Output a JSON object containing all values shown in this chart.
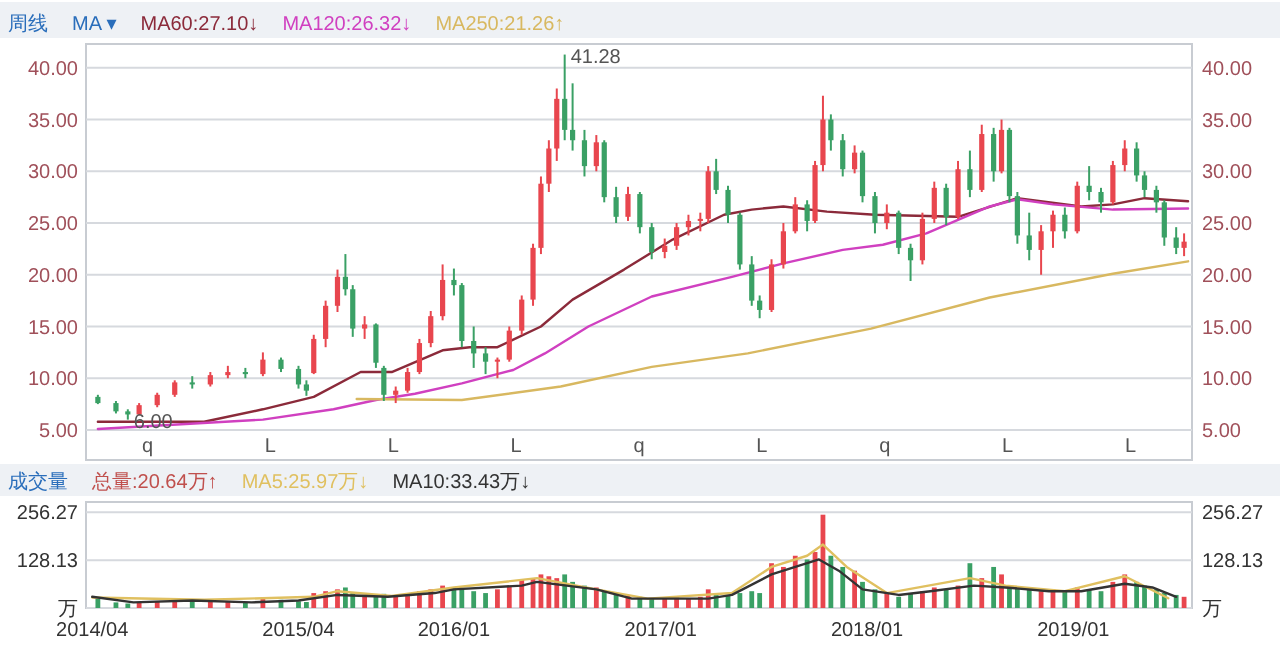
{
  "chart_data": [
    {
      "type": "candlestick",
      "title": "周线",
      "annotations": [
        "MA ▾",
        {
          "text": "41.28",
          "x": "2016-07-15",
          "y": 41.28
        },
        {
          "text": "6.00",
          "x": "2014-06-03",
          "y": 6.0
        },
        "q",
        "L",
        "L",
        "L",
        "q",
        "L",
        "q",
        "L",
        "L"
      ],
      "xlim": [
        "2014-03-21",
        "2019-07-30"
      ],
      "ylim": [
        2.1,
        42.3
      ],
      "yticks": [
        {
          "value": 5,
          "label": "5.00"
        },
        {
          "value": 10,
          "label": "10.00"
        },
        {
          "value": 15,
          "label": "15.00"
        },
        {
          "value": 20,
          "label": "20.00"
        },
        {
          "value": 25,
          "label": "25.00"
        },
        {
          "value": 30,
          "label": "30.00"
        },
        {
          "value": 35,
          "label": "35.00"
        },
        {
          "value": 40,
          "label": "40.00"
        }
      ],
      "y2lim": [
        2.1,
        42.3
      ],
      "y2ticks": [
        {
          "value": 5,
          "label": "5.00"
        },
        {
          "value": 10,
          "label": "10.00"
        },
        {
          "value": 15,
          "label": "15.00"
        },
        {
          "value": 20,
          "label": "20.00"
        },
        {
          "value": 25,
          "label": "25.00"
        },
        {
          "value": 30,
          "label": "30.00"
        },
        {
          "value": 35,
          "label": "35.00"
        },
        {
          "value": 40,
          "label": "40.00"
        }
      ],
      "tick_labels": "y",
      "grid": "y",
      "series": [
        {
          "x": [
            "2014-04-11",
            "2014-05-13",
            "2014-06-03",
            "2014-06-23",
            "2014-07-25",
            "2014-08-25",
            "2014-09-25",
            "2014-10-27",
            "2014-11-27",
            "2014-12-28",
            "2015-01-28",
            "2015-03-01",
            "2015-04-01",
            "2015-04-15",
            "2015-04-28",
            "2015-05-19",
            "2015-06-09",
            "2015-06-23",
            "2015-07-06",
            "2015-07-27",
            "2015-08-16",
            "2015-08-30",
            "2015-09-20",
            "2015-10-11",
            "2015-11-01",
            "2015-11-21",
            "2015-12-12",
            "2016-01-01",
            "2016-01-15",
            "2016-02-05",
            "2016-02-26",
            "2016-03-18",
            "2016-04-08",
            "2016-04-30",
            "2016-05-20",
            "2016-06-03",
            "2016-06-17",
            "2016-07-01",
            "2016-07-15",
            "2016-07-29",
            "2016-08-19",
            "2016-09-09",
            "2016-09-23",
            "2016-10-14",
            "2016-11-04",
            "2016-11-25",
            "2016-12-16",
            "2017-01-08",
            "2017-01-29",
            "2017-02-19",
            "2017-03-12",
            "2017-03-26",
            "2017-04-09",
            "2017-04-30",
            "2017-05-21",
            "2017-06-11",
            "2017-06-25",
            "2017-07-16",
            "2017-08-06",
            "2017-08-27",
            "2017-09-17",
            "2017-10-01",
            "2017-10-15",
            "2017-10-29",
            "2017-11-19",
            "2017-12-10",
            "2017-12-24",
            "2018-01-15",
            "2018-02-05",
            "2018-02-26",
            "2018-03-19",
            "2018-04-09",
            "2018-04-30",
            "2018-05-21",
            "2018-06-11",
            "2018-07-02",
            "2018-07-23",
            "2018-08-13",
            "2018-08-27",
            "2018-09-10",
            "2018-09-24",
            "2018-10-15",
            "2018-11-05",
            "2018-11-26",
            "2018-12-17",
            "2019-01-08",
            "2019-01-29",
            "2019-02-19",
            "2019-03-12",
            "2019-04-02",
            "2019-04-23",
            "2019-05-07",
            "2019-05-28",
            "2019-06-11",
            "2019-07-02",
            "2019-07-16"
          ],
          "ohlc": [
            [
              8.2,
              8.4,
              7.5,
              7.6
            ],
            [
              7.6,
              7.8,
              6.6,
              6.8
            ],
            [
              6.8,
              7.0,
              6.0,
              6.5
            ],
            [
              6.5,
              7.6,
              6.4,
              7.4
            ],
            [
              7.4,
              8.6,
              7.2,
              8.4
            ],
            [
              8.4,
              9.8,
              8.2,
              9.6
            ],
            [
              9.6,
              10.2,
              9.0,
              9.4
            ],
            [
              9.4,
              10.6,
              9.2,
              10.3
            ],
            [
              10.3,
              11.2,
              10.0,
              10.6
            ],
            [
              10.6,
              11.0,
              10.0,
              10.4
            ],
            [
              10.4,
              12.5,
              10.2,
              11.8
            ],
            [
              11.8,
              12.0,
              10.6,
              10.9
            ],
            [
              10.9,
              11.2,
              9.0,
              9.4
            ],
            [
              9.4,
              9.8,
              8.3,
              8.8
            ],
            [
              10.5,
              14.2,
              10.4,
              13.8
            ],
            [
              13.8,
              17.5,
              13.0,
              17.0
            ],
            [
              17.0,
              20.5,
              16.4,
              19.8
            ],
            [
              19.8,
              22.0,
              18.0,
              18.6
            ],
            [
              18.6,
              19.0,
              14.0,
              14.8
            ],
            [
              14.8,
              16.0,
              13.8,
              15.2
            ],
            [
              15.2,
              15.3,
              11.0,
              11.5
            ],
            [
              11.0,
              11.2,
              7.8,
              8.4
            ],
            [
              8.4,
              9.2,
              7.6,
              8.8
            ],
            [
              8.8,
              11.0,
              8.6,
              10.6
            ],
            [
              10.6,
              13.8,
              10.4,
              13.4
            ],
            [
              13.4,
              16.5,
              13.0,
              16.0
            ],
            [
              16.0,
              21.0,
              15.6,
              19.5
            ],
            [
              19.5,
              20.6,
              18.0,
              19.0
            ],
            [
              19.0,
              19.2,
              13.0,
              13.6
            ],
            [
              13.6,
              15.0,
              11.0,
              12.4
            ],
            [
              12.4,
              13.0,
              10.4,
              11.6
            ],
            [
              11.6,
              12.0,
              10.0,
              11.8
            ],
            [
              11.8,
              15.0,
              11.6,
              14.6
            ],
            [
              14.6,
              18.0,
              14.2,
              17.6
            ],
            [
              17.6,
              23.0,
              17.0,
              22.6
            ],
            [
              22.6,
              29.5,
              22.0,
              28.8
            ],
            [
              28.8,
              33.0,
              28.0,
              32.2
            ],
            [
              32.2,
              38.0,
              31.0,
              37.0
            ],
            [
              37.0,
              41.28,
              33.0,
              34.0
            ],
            [
              34.0,
              38.5,
              32.0,
              33.0
            ],
            [
              33.0,
              34.0,
              29.5,
              30.5
            ],
            [
              30.5,
              33.5,
              30.0,
              32.8
            ],
            [
              32.8,
              33.0,
              27.0,
              27.5
            ],
            [
              27.5,
              28.5,
              25.0,
              25.6
            ],
            [
              25.6,
              28.5,
              25.2,
              27.8
            ],
            [
              27.8,
              28.0,
              24.0,
              24.6
            ],
            [
              24.6,
              25.0,
              21.5,
              22.2
            ],
            [
              22.2,
              23.5,
              21.6,
              22.8
            ],
            [
              22.8,
              25.0,
              22.4,
              24.6
            ],
            [
              24.6,
              25.8,
              23.8,
              25.2
            ],
            [
              25.2,
              26.0,
              24.2,
              25.4
            ],
            [
              25.4,
              30.5,
              25.0,
              30.0
            ],
            [
              30.0,
              31.2,
              27.8,
              28.2
            ],
            [
              28.2,
              28.6,
              25.0,
              25.8
            ],
            [
              25.8,
              26.0,
              20.5,
              21.0
            ],
            [
              21.0,
              21.8,
              17.0,
              17.5
            ],
            [
              17.5,
              18.0,
              15.8,
              16.6
            ],
            [
              16.6,
              21.5,
              16.4,
              21.0
            ],
            [
              21.0,
              25.0,
              20.6,
              24.2
            ],
            [
              24.2,
              27.5,
              24.0,
              26.8
            ],
            [
              26.8,
              27.2,
              24.2,
              25.2
            ],
            [
              25.2,
              31.0,
              25.0,
              30.6
            ],
            [
              30.6,
              37.3,
              30.0,
              35.0
            ],
            [
              35.0,
              35.5,
              32.0,
              33.0
            ],
            [
              33.0,
              33.6,
              29.5,
              30.2
            ],
            [
              30.2,
              32.5,
              29.8,
              31.8
            ],
            [
              31.8,
              32.0,
              27.0,
              27.6
            ],
            [
              27.6,
              28.0,
              24.0,
              25.0
            ],
            [
              25.0,
              26.8,
              24.4,
              26.0
            ],
            [
              26.0,
              26.2,
              22.0,
              22.6
            ],
            [
              22.6,
              23.0,
              19.4,
              21.4
            ],
            [
              21.4,
              26.0,
              21.0,
              25.4
            ],
            [
              25.4,
              29.0,
              25.0,
              28.4
            ],
            [
              28.4,
              28.8,
              24.8,
              25.6
            ],
            [
              25.6,
              31.0,
              25.4,
              30.2
            ],
            [
              30.2,
              32.0,
              27.5,
              28.2
            ],
            [
              28.2,
              34.5,
              28.0,
              33.6
            ],
            [
              33.6,
              34.2,
              29.0,
              30.0
            ],
            [
              30.0,
              35.0,
              29.8,
              34.0
            ],
            [
              34.0,
              34.2,
              27.0,
              27.6
            ],
            [
              27.6,
              28.0,
              23.0,
              23.8
            ],
            [
              23.8,
              26.0,
              21.4,
              22.4
            ],
            [
              22.4,
              24.8,
              20.0,
              24.2
            ],
            [
              24.2,
              26.2,
              22.6,
              25.8
            ],
            [
              25.8,
              26.5,
              23.5,
              24.2
            ],
            [
              24.2,
              29.0,
              24.0,
              28.6
            ],
            [
              28.6,
              30.5,
              27.2,
              28.0
            ],
            [
              28.0,
              28.4,
              26.0,
              27.0
            ],
            [
              27.0,
              31.0,
              26.8,
              30.6
            ],
            [
              30.6,
              33.0,
              30.0,
              32.2
            ],
            [
              32.2,
              32.8,
              29.0,
              29.6
            ],
            [
              29.6,
              30.0,
              27.5,
              28.2
            ],
            [
              28.2,
              28.6,
              26.0,
              27.0
            ],
            [
              27.0,
              27.2,
              22.8,
              23.6
            ],
            [
              23.6,
              24.6,
              22.0,
              22.6
            ],
            [
              22.6,
              24.0,
              21.8,
              23.2
            ]
          ],
          "colors": [
            "#3aa065",
            "#3aa065",
            "#3aa065",
            "#e8464e",
            "#e8464e",
            "#e8464e",
            "#3aa065",
            "#e8464e",
            "#e8464e",
            "#3aa065",
            "#e8464e",
            "#3aa065",
            "#3aa065",
            "#3aa065",
            "#e8464e",
            "#e8464e",
            "#e8464e",
            "#3aa065",
            "#3aa065",
            "#e8464e",
            "#3aa065",
            "#3aa065",
            "#e8464e",
            "#e8464e",
            "#e8464e",
            "#e8464e",
            "#e8464e",
            "#3aa065",
            "#3aa065",
            "#3aa065",
            "#3aa065",
            "#e8464e",
            "#e8464e",
            "#e8464e",
            "#e8464e",
            "#e8464e",
            "#e8464e",
            "#e8464e",
            "#3aa065",
            "#3aa065",
            "#3aa065",
            "#e8464e",
            "#3aa065",
            "#3aa065",
            "#e8464e",
            "#3aa065",
            "#3aa065",
            "#e8464e",
            "#e8464e",
            "#e8464e",
            "#e8464e",
            "#e8464e",
            "#3aa065",
            "#3aa065",
            "#3aa065",
            "#3aa065",
            "#3aa065",
            "#e8464e",
            "#e8464e",
            "#e8464e",
            "#3aa065",
            "#e8464e",
            "#e8464e",
            "#3aa065",
            "#3aa065",
            "#e8464e",
            "#3aa065",
            "#3aa065",
            "#e8464e",
            "#3aa065",
            "#3aa065",
            "#e8464e",
            "#e8464e",
            "#3aa065",
            "#e8464e",
            "#3aa065",
            "#e8464e",
            "#3aa065",
            "#e8464e",
            "#3aa065",
            "#3aa065",
            "#3aa065",
            "#e8464e",
            "#e8464e",
            "#3aa065",
            "#e8464e",
            "#3aa065",
            "#3aa065",
            "#e8464e",
            "#e8464e",
            "#3aa065",
            "#3aa065",
            "#3aa065",
            "#3aa065",
            "#3aa065",
            "#e8464e"
          ]
        },
        {
          "type": "line",
          "name": "MA60:27.10↓",
          "color": "#8b2a3a",
          "x": [
            "2014-04-11",
            "2014-10-16",
            "2015-01-28",
            "2015-04-28",
            "2015-07-20",
            "2015-09-13",
            "2015-12-12",
            "2016-01-29",
            "2016-03-18",
            "2016-06-03",
            "2016-07-29",
            "2016-10-28",
            "2017-01-22",
            "2017-04-23",
            "2017-06-11",
            "2017-08-06",
            "2017-10-22",
            "2018-01-15",
            "2018-06-11",
            "2018-09-24",
            "2019-01-15",
            "2019-03-12",
            "2019-05-07",
            "2019-07-23"
          ],
          "values": [
            5.8,
            5.8,
            7.0,
            8.2,
            10.6,
            10.6,
            12.7,
            13.0,
            13.0,
            15.0,
            17.6,
            20.5,
            23.4,
            25.8,
            26.3,
            26.6,
            26.1,
            25.8,
            25.6,
            27.4,
            26.6,
            26.8,
            27.4,
            27.1
          ]
        },
        {
          "type": "line",
          "name": "MA120:26.32↓",
          "color": "#d040c0",
          "x": [
            "2014-04-11",
            "2015-01-28",
            "2015-06-02",
            "2015-08-16",
            "2015-10-24",
            "2016-01-15",
            "2016-04-15",
            "2016-06-10",
            "2016-08-26",
            "2016-12-16",
            "2017-05-07",
            "2017-08-06",
            "2017-11-19",
            "2018-01-29",
            "2018-04-16",
            "2018-08-06",
            "2018-09-24",
            "2018-11-26",
            "2019-03-12",
            "2019-07-23"
          ],
          "values": [
            5.1,
            6.0,
            7.0,
            7.9,
            8.5,
            9.5,
            10.8,
            12.4,
            15.0,
            17.9,
            19.8,
            21.1,
            22.4,
            22.9,
            24.0,
            26.6,
            27.3,
            26.8,
            26.3,
            26.4
          ]
        },
        {
          "type": "line",
          "name": "MA250:21.26↑",
          "color": "#d8b860",
          "x": [
            "2015-07-13",
            "2016-01-15",
            "2016-07-08",
            "2016-12-16",
            "2017-06-04",
            "2018-01-08",
            "2018-08-06",
            "2019-03-12",
            "2019-07-23"
          ],
          "values": [
            8.0,
            7.9,
            9.2,
            11.1,
            12.4,
            14.8,
            17.8,
            20.1,
            21.3
          ]
        }
      ]
    },
    {
      "type": "bar",
      "title": "成交量",
      "xlim": [
        "2014-03-21",
        "2019-07-30"
      ],
      "ylim": [
        0,
        284
      ],
      "yticks": [
        {
          "value": 0,
          "label": "万"
        },
        128.13,
        256.27
      ],
      "y2lim": [
        0,
        284
      ],
      "y2ticks": [
        {
          "value": 0,
          "label": "万"
        },
        128.13,
        256.27
      ],
      "xticks": [
        {
          "value": "2014-04-01",
          "label": "2014/04"
        },
        {
          "value": "2015-04-01",
          "label": "2015/04"
        },
        {
          "value": "2016-01-01",
          "label": "2016/01"
        },
        {
          "value": "2017-01-01",
          "label": "2017/01"
        },
        {
          "value": "2018-01-01",
          "label": "2018/01"
        },
        {
          "value": "2019-01-01",
          "label": "2019/01"
        }
      ],
      "grid": "y",
      "series": [
        {
          "name": "总量:20.64万↑",
          "color": "#c0504d",
          "x": [
            "2014-04-11",
            "2014-05-13",
            "2014-06-03",
            "2014-06-23",
            "2014-07-25",
            "2014-08-25",
            "2014-09-25",
            "2014-10-27",
            "2014-11-27",
            "2014-12-28",
            "2015-01-28",
            "2015-03-01",
            "2015-04-01",
            "2015-04-15",
            "2015-04-28",
            "2015-05-19",
            "2015-06-09",
            "2015-06-23",
            "2015-07-06",
            "2015-07-27",
            "2015-08-16",
            "2015-08-30",
            "2015-09-20",
            "2015-10-11",
            "2015-11-01",
            "2015-11-21",
            "2015-12-12",
            "2016-01-01",
            "2016-01-15",
            "2016-02-05",
            "2016-02-26",
            "2016-03-18",
            "2016-04-08",
            "2016-04-30",
            "2016-05-20",
            "2016-06-03",
            "2016-06-17",
            "2016-07-01",
            "2016-07-15",
            "2016-07-29",
            "2016-08-19",
            "2016-09-09",
            "2016-09-23",
            "2016-10-14",
            "2016-11-04",
            "2016-11-25",
            "2016-12-16",
            "2017-01-08",
            "2017-01-29",
            "2017-02-19",
            "2017-03-12",
            "2017-03-26",
            "2017-04-09",
            "2017-04-30",
            "2017-05-21",
            "2017-06-11",
            "2017-06-25",
            "2017-07-16",
            "2017-08-06",
            "2017-08-27",
            "2017-09-17",
            "2017-10-01",
            "2017-10-15",
            "2017-10-29",
            "2017-11-19",
            "2017-12-10",
            "2017-12-24",
            "2018-01-15",
            "2018-02-05",
            "2018-02-26",
            "2018-03-19",
            "2018-04-09",
            "2018-04-30",
            "2018-05-21",
            "2018-06-11",
            "2018-07-02",
            "2018-07-23",
            "2018-08-13",
            "2018-08-27",
            "2018-09-10",
            "2018-09-24",
            "2018-10-15",
            "2018-11-05",
            "2018-11-26",
            "2018-12-17",
            "2019-01-08",
            "2019-01-29",
            "2019-02-19",
            "2019-03-12",
            "2019-04-02",
            "2019-04-23",
            "2019-05-07",
            "2019-05-28",
            "2019-06-11",
            "2019-07-02",
            "2019-07-16"
          ],
          "values": [
            25,
            15,
            12,
            15,
            18,
            20,
            22,
            20,
            18,
            15,
            28,
            22,
            18,
            16,
            40,
            45,
            50,
            55,
            40,
            35,
            30,
            38,
            30,
            32,
            45,
            50,
            60,
            55,
            50,
            45,
            40,
            50,
            60,
            75,
            80,
            90,
            85,
            80,
            90,
            70,
            60,
            55,
            45,
            40,
            35,
            30,
            25,
            25,
            28,
            25,
            30,
            50,
            40,
            35,
            40,
            45,
            40,
            120,
            110,
            140,
            130,
            150,
            250,
            140,
            110,
            100,
            70,
            50,
            40,
            30,
            40,
            45,
            55,
            50,
            60,
            120,
            80,
            110,
            90,
            60,
            55,
            50,
            45,
            50,
            45,
            55,
            50,
            45,
            70,
            90,
            70,
            60,
            50,
            40,
            35,
            30
          ],
          "colors": [
            "#3aa065",
            "#3aa065",
            "#3aa065",
            "#e8464e",
            "#e8464e",
            "#e8464e",
            "#3aa065",
            "#e8464e",
            "#e8464e",
            "#3aa065",
            "#e8464e",
            "#3aa065",
            "#3aa065",
            "#3aa065",
            "#e8464e",
            "#e8464e",
            "#e8464e",
            "#3aa065",
            "#3aa065",
            "#e8464e",
            "#3aa065",
            "#3aa065",
            "#e8464e",
            "#e8464e",
            "#e8464e",
            "#e8464e",
            "#e8464e",
            "#3aa065",
            "#3aa065",
            "#3aa065",
            "#3aa065",
            "#e8464e",
            "#e8464e",
            "#e8464e",
            "#e8464e",
            "#e8464e",
            "#e8464e",
            "#e8464e",
            "#3aa065",
            "#3aa065",
            "#3aa065",
            "#e8464e",
            "#3aa065",
            "#3aa065",
            "#e8464e",
            "#3aa065",
            "#3aa065",
            "#e8464e",
            "#e8464e",
            "#e8464e",
            "#e8464e",
            "#e8464e",
            "#3aa065",
            "#3aa065",
            "#3aa065",
            "#3aa065",
            "#3aa065",
            "#e8464e",
            "#e8464e",
            "#e8464e",
            "#3aa065",
            "#e8464e",
            "#e8464e",
            "#3aa065",
            "#3aa065",
            "#e8464e",
            "#3aa065",
            "#3aa065",
            "#e8464e",
            "#3aa065",
            "#3aa065",
            "#e8464e",
            "#e8464e",
            "#3aa065",
            "#e8464e",
            "#3aa065",
            "#e8464e",
            "#3aa065",
            "#e8464e",
            "#3aa065",
            "#3aa065",
            "#3aa065",
            "#e8464e",
            "#e8464e",
            "#3aa065",
            "#e8464e",
            "#3aa065",
            "#3aa065",
            "#e8464e",
            "#e8464e",
            "#3aa065",
            "#3aa065",
            "#3aa065",
            "#3aa065",
            "#3aa065",
            "#e8464e"
          ]
        },
        {
          "type": "line",
          "name": "MA5:25.97万↓",
          "color": "#e0c060",
          "x": [
            "2014-04-01",
            "2014-10-16",
            "2015-04-28",
            "2015-06-09",
            "2015-09-13",
            "2016-01-01",
            "2016-05-27",
            "2016-09-09",
            "2016-12-09",
            "2017-05-07",
            "2017-07-16",
            "2017-09-17",
            "2017-10-15",
            "2017-11-26",
            "2018-02-05",
            "2018-07-02",
            "2018-09-03",
            "2018-12-17",
            "2019-04-02",
            "2019-06-18"
          ],
          "values": [
            28,
            22,
            30,
            45,
            32,
            55,
            80,
            50,
            25,
            40,
            110,
            140,
            170,
            110,
            40,
            80,
            60,
            45,
            85,
            26
          ]
        },
        {
          "type": "line",
          "name": "MA10:33.43万↓",
          "color": "#333333",
          "x": [
            "2014-04-01",
            "2014-06-13",
            "2014-09-25",
            "2015-01-08",
            "2015-04-01",
            "2015-06-09",
            "2015-09-06",
            "2015-11-28",
            "2016-01-01",
            "2016-04-30",
            "2016-05-27",
            "2016-09-09",
            "2016-11-11",
            "2017-03-26",
            "2017-05-07",
            "2017-07-16",
            "2017-09-17",
            "2017-10-08",
            "2017-11-12",
            "2017-12-24",
            "2018-02-26",
            "2018-04-23",
            "2018-07-09",
            "2018-09-03",
            "2018-11-19",
            "2019-01-15",
            "2019-04-02",
            "2019-05-21",
            "2019-07-02"
          ],
          "values": [
            30,
            15,
            20,
            15,
            20,
            35,
            30,
            40,
            50,
            60,
            70,
            50,
            25,
            25,
            35,
            90,
            120,
            130,
            100,
            50,
            35,
            45,
            60,
            55,
            45,
            45,
            65,
            55,
            30
          ]
        }
      ]
    }
  ]
}
